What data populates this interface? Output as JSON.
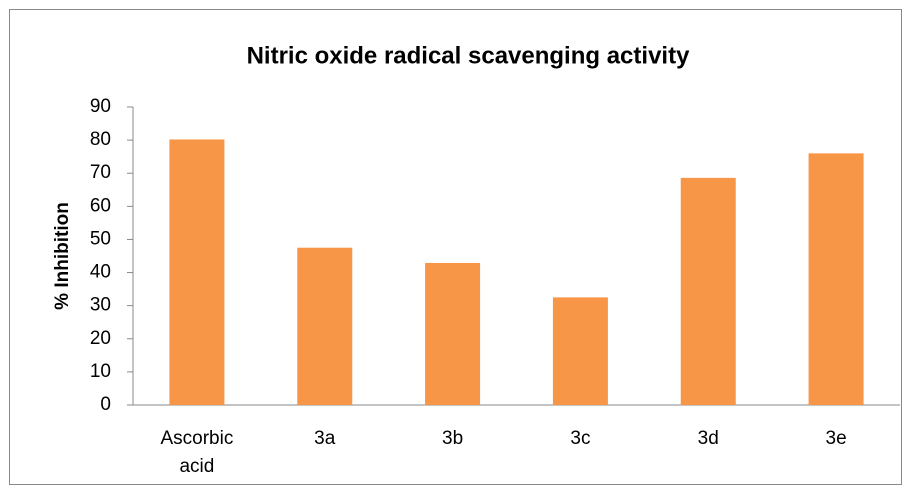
{
  "chart_data": {
    "type": "bar",
    "title": "Nitric oxide radical scavenging activity",
    "ylabel": "% Inhibition",
    "categories": [
      "Ascorbic acid",
      "3a",
      "3b",
      "3c",
      "3d",
      "3e"
    ],
    "values": [
      80.2,
      47.5,
      42.9,
      32.5,
      68.6,
      76.0
    ],
    "color": "#f79646",
    "ylim": [
      0,
      90
    ],
    "yticks": [
      0,
      10,
      20,
      30,
      40,
      50,
      60,
      70,
      80,
      90
    ],
    "grid": false
  }
}
